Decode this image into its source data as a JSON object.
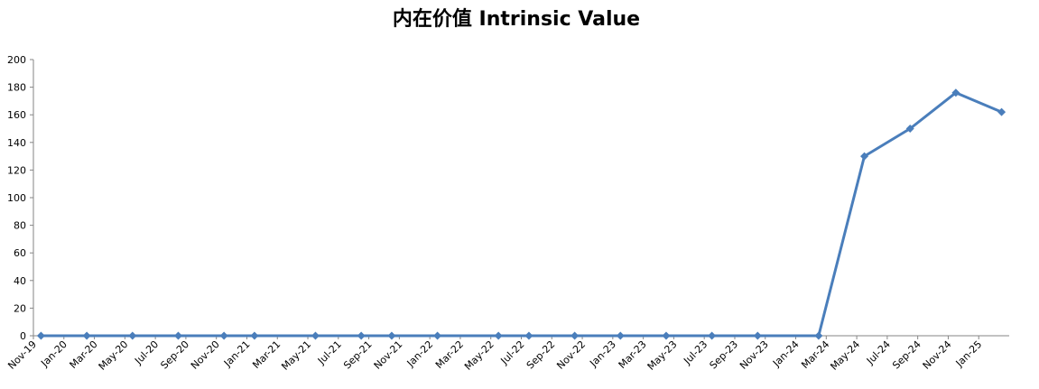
{
  "chart_data": {
    "type": "line",
    "title": "内在价值 Intrinsic Value",
    "x": [
      "2019-11",
      "2020-02",
      "2020-05",
      "2020-08",
      "2020-11",
      "2021-01",
      "2021-05",
      "2021-08",
      "2021-10",
      "2022-01",
      "2022-05",
      "2022-07",
      "2022-10",
      "2023-01",
      "2023-04",
      "2023-07",
      "2023-10",
      "2024-02",
      "2024-05",
      "2024-08",
      "2024-11",
      "2025-02"
    ],
    "series": [
      {
        "name": "Intrinsic Value",
        "color": "#4a7ebb",
        "values": [
          0,
          0,
          0,
          0,
          0,
          0,
          0,
          0,
          0,
          0,
          0,
          0,
          0,
          0,
          0,
          0,
          0,
          0,
          130,
          150,
          176,
          162
        ]
      }
    ],
    "xlim": [
      "2019-11",
      "2025-03"
    ],
    "xticks": [
      {
        "value": "2019-11",
        "label": "Nov-19"
      },
      {
        "value": "2020-01",
        "label": "Jan-20"
      },
      {
        "value": "2020-03",
        "label": "Mar-20"
      },
      {
        "value": "2020-05",
        "label": "May-20"
      },
      {
        "value": "2020-07",
        "label": "Jul-20"
      },
      {
        "value": "2020-09",
        "label": "Sep-20"
      },
      {
        "value": "2020-11",
        "label": "Nov-20"
      },
      {
        "value": "2021-01",
        "label": "Jan-21"
      },
      {
        "value": "2021-03",
        "label": "Mar-21"
      },
      {
        "value": "2021-05",
        "label": "May-21"
      },
      {
        "value": "2021-07",
        "label": "Jul-21"
      },
      {
        "value": "2021-09",
        "label": "Sep-21"
      },
      {
        "value": "2021-11",
        "label": "Nov-21"
      },
      {
        "value": "2022-01",
        "label": "Jan-22"
      },
      {
        "value": "2022-03",
        "label": "Mar-22"
      },
      {
        "value": "2022-05",
        "label": "May-22"
      },
      {
        "value": "2022-07",
        "label": "Jul-22"
      },
      {
        "value": "2022-09",
        "label": "Sep-22"
      },
      {
        "value": "2022-11",
        "label": "Nov-22"
      },
      {
        "value": "2023-01",
        "label": "Jan-23"
      },
      {
        "value": "2023-03",
        "label": "Mar-23"
      },
      {
        "value": "2023-05",
        "label": "May-23"
      },
      {
        "value": "2023-07",
        "label": "Jul-23"
      },
      {
        "value": "2023-09",
        "label": "Sep-23"
      },
      {
        "value": "2023-11",
        "label": "Nov-23"
      },
      {
        "value": "2024-01",
        "label": "Jan-24"
      },
      {
        "value": "2024-03",
        "label": "Mar-24"
      },
      {
        "value": "2024-05",
        "label": "May-24"
      },
      {
        "value": "2024-07",
        "label": "Jul-24"
      },
      {
        "value": "2024-09",
        "label": "Sep-24"
      },
      {
        "value": "2024-11",
        "label": "Nov-24"
      },
      {
        "value": "2025-01",
        "label": "Jan-25"
      }
    ],
    "ylim": [
      0,
      200
    ],
    "yticks": [
      0,
      20,
      40,
      60,
      80,
      100,
      120,
      140,
      160,
      180,
      200
    ],
    "grid": false
  }
}
